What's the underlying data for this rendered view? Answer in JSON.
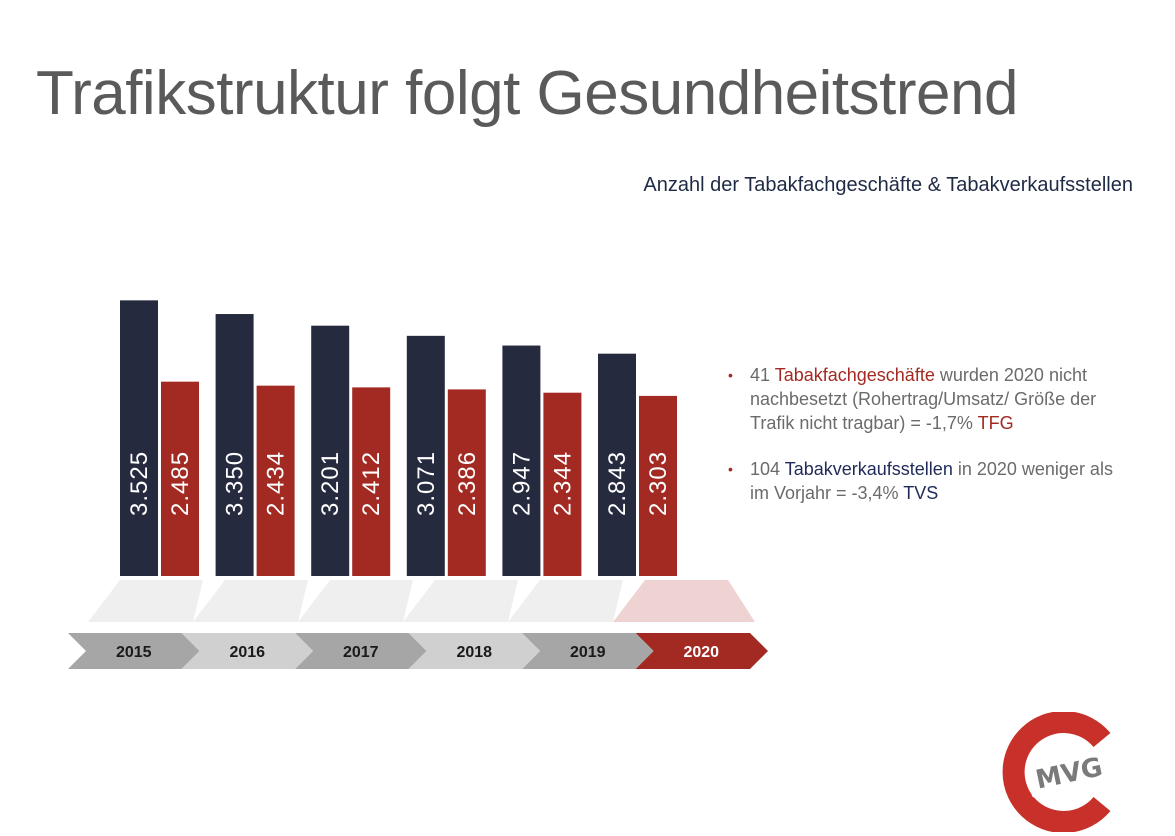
{
  "title": "Trafikstruktur folgt Gesundheitstrend",
  "subtitle": "Anzahl der Tabakfachgeschäfte & Tabakverkaufsstellen",
  "chart_data": {
    "type": "bar",
    "categories": [
      "2015",
      "2016",
      "2017",
      "2018",
      "2019",
      "2020"
    ],
    "series": [
      {
        "color": "#252a3f",
        "values": [
          3525,
          3350,
          3201,
          3071,
          2947,
          2843
        ],
        "labels": [
          "3.525",
          "3.350",
          "3.201",
          "3.071",
          "2.947",
          "2.843"
        ]
      },
      {
        "color": "#a32a22",
        "values": [
          2485,
          2434,
          2412,
          2386,
          2344,
          2303
        ],
        "labels": [
          "2.485",
          "2.434",
          "2.412",
          "2.386",
          "2.344",
          "2.303"
        ]
      }
    ],
    "highlight_category": "2020",
    "colors": {
      "arrow_dark": "#a6a6a6",
      "arrow_light": "#d0d0d0",
      "arrow_highlight": "#a32a22",
      "platform": "#efefef",
      "platform_highlight": "#efd3d3"
    }
  },
  "bullets": [
    {
      "num": "41",
      "term": "Tabakfachgeschäfte",
      "rest": "wurden 2020 nicht nachbesetzt (Rohertrag/Umsatz/ Größe der Trafik nicht tragbar) = -1,7%",
      "tag": "TFG"
    },
    {
      "num": "104",
      "term": "Tabakverkaufsstellen",
      "rest": "in 2020 weniger als im Vorjahr = -3,4%",
      "tag": "TVS"
    }
  ],
  "logo": {
    "text": "MVG",
    "color": "#c8302a"
  }
}
